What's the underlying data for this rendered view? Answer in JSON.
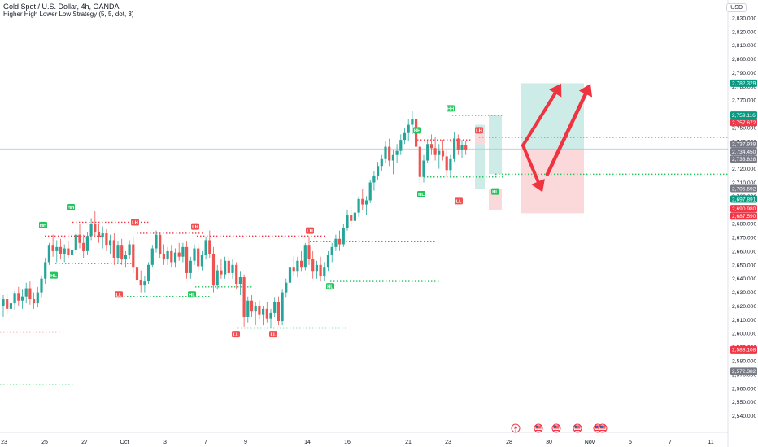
{
  "header": {
    "symbol_title": "Gold Spot / U.S. Dollar, 4h, OANDA",
    "indicator": "Higher High Lower Low Strategy (5, 5, dot, 3)",
    "currency": "USD"
  },
  "colors": {
    "up": "#26a69a",
    "down": "#ef5350",
    "hh_label": "#22c55e",
    "ll_label": "#f05252",
    "red_dots": "#f23645",
    "green_dots": "#22c55e",
    "arrow": "#ef3340",
    "long_zone": "#cdece7",
    "short_zone": "#fbd9db"
  },
  "chart_data": {
    "type": "candlestick",
    "y_range": [
      2535,
      2840
    ],
    "y_ticks": [
      2540,
      2550,
      2560,
      2570,
      2580,
      2590,
      2600,
      2610,
      2620,
      2630,
      2640,
      2650,
      2660,
      2670,
      2680,
      2690,
      2700,
      2710,
      2720,
      2730,
      2740,
      2750,
      2760,
      2770,
      2780,
      2790,
      2800,
      2810,
      2820,
      2830
    ],
    "y_tick_labels": [
      "2,540.000",
      "2,550.000",
      "2,560.000",
      "2,570.000",
      "2,580.000",
      "2,590.000",
      "2,600.000",
      "2,610.000",
      "2,620.000",
      "2,630.000",
      "2,640.000",
      "2,650.000",
      "2,660.000",
      "2,670.000",
      "2,680.000",
      "2,690.000",
      "2,700.000",
      "2,710.000",
      "2,720.000",
      "2,730.000",
      "2,740.000",
      "2,750.000",
      "2,760.000",
      "2,770.000",
      "2,780.000",
      "2,790.000",
      "2,800.000",
      "2,810.000",
      "2,820.000",
      "2,830.000"
    ],
    "x_ticks": [
      {
        "label": "23",
        "pos": 5
      },
      {
        "label": "25",
        "pos": 55
      },
      {
        "label": "27",
        "pos": 104
      },
      {
        "label": "Oct",
        "pos": 153
      },
      {
        "label": "3",
        "pos": 203
      },
      {
        "label": "7",
        "pos": 253
      },
      {
        "label": "9",
        "pos": 302
      },
      {
        "label": "14",
        "pos": 378
      },
      {
        "label": "16",
        "pos": 427
      },
      {
        "label": "21",
        "pos": 502
      },
      {
        "label": "23",
        "pos": 551
      },
      {
        "label": "28",
        "pos": 626
      },
      {
        "label": "30",
        "pos": 675
      },
      {
        "label": "Nov",
        "pos": 725
      },
      {
        "label": "5",
        "pos": 775
      },
      {
        "label": "7",
        "pos": 824
      },
      {
        "label": "11",
        "pos": 874
      }
    ],
    "price_badges": [
      {
        "value": 2782.329,
        "label": "2,782.329",
        "color": "#089981"
      },
      {
        "value": 2759.116,
        "label": "2,759.116",
        "color": "#089981"
      },
      {
        "value": 2757.672,
        "label": "2,757.672",
        "color": "#f23645"
      },
      {
        "value": 2737.938,
        "label": "2,737.938",
        "color": "#787b86"
      },
      {
        "value": 2734.45,
        "label": "2,734.450",
        "color": "#787b86"
      },
      {
        "value": 2733.828,
        "label": "2,733.828",
        "color": "#787b86"
      },
      {
        "value": 2705.592,
        "label": "2,705.592",
        "color": "#787b86"
      },
      {
        "value": 2697.891,
        "label": "2,697.891",
        "color": "#089981"
      },
      {
        "value": 2690.98,
        "label": "2,690.980",
        "color": "#f23645"
      },
      {
        "value": 2687.59,
        "label": "2,687.590",
        "color": "#f23645"
      },
      {
        "value": 2588.108,
        "label": "2,588.108",
        "color": "#f23645"
      },
      {
        "value": 2572.382,
        "label": "2,572.382",
        "color": "#787b86"
      }
    ],
    "swing_labels": [
      {
        "text": "HH",
        "pos": 53,
        "price": 2676,
        "kind": "high"
      },
      {
        "text": "HL",
        "pos": 66,
        "price": 2646,
        "kind": "low"
      },
      {
        "text": "HH",
        "pos": 87,
        "price": 2689,
        "kind": "high"
      },
      {
        "text": "LL",
        "pos": 146,
        "price": 2632,
        "kind": "low"
      },
      {
        "text": "LH",
        "pos": 166,
        "price": 2678,
        "kind": "high"
      },
      {
        "text": "LH",
        "pos": 240,
        "price": 2675,
        "kind": "high"
      },
      {
        "text": "HL",
        "pos": 236,
        "price": 2632,
        "kind": "low"
      },
      {
        "text": "LL",
        "pos": 290,
        "price": 2603,
        "kind": "low"
      },
      {
        "text": "LL",
        "pos": 336,
        "price": 2603,
        "kind": "low"
      },
      {
        "text": "LH",
        "pos": 381,
        "price": 2672,
        "kind": "high"
      },
      {
        "text": "HL",
        "pos": 406,
        "price": 2638,
        "kind": "low"
      },
      {
        "text": "HH",
        "pos": 513,
        "price": 2745,
        "kind": "high"
      },
      {
        "text": "HL",
        "pos": 518,
        "price": 2705,
        "kind": "low"
      },
      {
        "text": "HH",
        "pos": 554,
        "price": 2761,
        "kind": "high"
      },
      {
        "text": "LL",
        "pos": 564,
        "price": 2700,
        "kind": "low"
      },
      {
        "text": "LH",
        "pos": 589,
        "price": 2745,
        "kind": "high"
      },
      {
        "text": "HL",
        "pos": 609,
        "price": 2707,
        "kind": "low"
      }
    ],
    "level_lines": [
      {
        "from": 0,
        "to": 75,
        "price": 2601,
        "color": "red"
      },
      {
        "from": 0,
        "to": 90,
        "price": 2563,
        "color": "green"
      },
      {
        "from": 55,
        "to": 125,
        "price": 2671,
        "color": "red"
      },
      {
        "from": 68,
        "to": 165,
        "price": 2651,
        "color": "green"
      },
      {
        "from": 89,
        "to": 185,
        "price": 2681,
        "color": "red"
      },
      {
        "from": 148,
        "to": 258,
        "price": 2627,
        "color": "green"
      },
      {
        "from": 168,
        "to": 250,
        "price": 2673,
        "color": "red"
      },
      {
        "from": 240,
        "to": 310,
        "price": 2634,
        "color": "green"
      },
      {
        "from": 242,
        "to": 400,
        "price": 2671,
        "color": "red"
      },
      {
        "from": 292,
        "to": 425,
        "price": 2604,
        "color": "green"
      },
      {
        "from": 381,
        "to": 535,
        "price": 2667,
        "color": "red"
      },
      {
        "from": 406,
        "to": 540,
        "price": 2638,
        "color": "green"
      },
      {
        "from": 513,
        "to": 580,
        "price": 2741,
        "color": "red"
      },
      {
        "from": 521,
        "to": 620,
        "price": 2714,
        "color": "green"
      },
      {
        "from": 556,
        "to": 620,
        "price": 2759,
        "color": "red"
      },
      {
        "from": 589,
        "to": 895,
        "price": 2743,
        "color": "red"
      },
      {
        "from": 609,
        "to": 895,
        "price": 2716,
        "color": "green"
      }
    ],
    "candles": [
      [
        2620,
        2628,
        2612,
        2625
      ],
      [
        2625,
        2629,
        2614,
        2618
      ],
      [
        2618,
        2626,
        2615,
        2622
      ],
      [
        2622,
        2631,
        2617,
        2629
      ],
      [
        2629,
        2634,
        2620,
        2624
      ],
      [
        2624,
        2632,
        2618,
        2627
      ],
      [
        2627,
        2637,
        2622,
        2633
      ],
      [
        2633,
        2638,
        2621,
        2625
      ],
      [
        2625,
        2630,
        2618,
        2622
      ],
      [
        2622,
        2634,
        2619,
        2630
      ],
      [
        2630,
        2642,
        2626,
        2640
      ],
      [
        2640,
        2655,
        2636,
        2652
      ],
      [
        2652,
        2666,
        2650,
        2664
      ],
      [
        2664,
        2672,
        2656,
        2660
      ],
      [
        2660,
        2668,
        2652,
        2663
      ],
      [
        2663,
        2669,
        2654,
        2658
      ],
      [
        2658,
        2665,
        2652,
        2662
      ],
      [
        2662,
        2667,
        2655,
        2657
      ],
      [
        2657,
        2664,
        2651,
        2661
      ],
      [
        2661,
        2674,
        2658,
        2672
      ],
      [
        2672,
        2680,
        2662,
        2666
      ],
      [
        2666,
        2672,
        2655,
        2660
      ],
      [
        2660,
        2674,
        2657,
        2671
      ],
      [
        2671,
        2684,
        2668,
        2680
      ],
      [
        2680,
        2689,
        2670,
        2674
      ],
      [
        2674,
        2680,
        2666,
        2670
      ],
      [
        2670,
        2678,
        2662,
        2673
      ],
      [
        2673,
        2676,
        2660,
        2664
      ],
      [
        2664,
        2672,
        2658,
        2668
      ],
      [
        2668,
        2673,
        2650,
        2655
      ],
      [
        2655,
        2667,
        2651,
        2664
      ],
      [
        2664,
        2669,
        2650,
        2654
      ],
      [
        2654,
        2660,
        2648,
        2657
      ],
      [
        2657,
        2668,
        2654,
        2665
      ],
      [
        2665,
        2670,
        2644,
        2648
      ],
      [
        2648,
        2656,
        2635,
        2639
      ],
      [
        2639,
        2646,
        2630,
        2635
      ],
      [
        2635,
        2642,
        2630,
        2638
      ],
      [
        2638,
        2652,
        2636,
        2650
      ],
      [
        2650,
        2664,
        2648,
        2662
      ],
      [
        2662,
        2675,
        2659,
        2672
      ],
      [
        2672,
        2674,
        2655,
        2658
      ],
      [
        2658,
        2665,
        2650,
        2654
      ],
      [
        2654,
        2663,
        2650,
        2660
      ],
      [
        2660,
        2664,
        2648,
        2652
      ],
      [
        2652,
        2662,
        2648,
        2659
      ],
      [
        2659,
        2666,
        2653,
        2656
      ],
      [
        2656,
        2666,
        2652,
        2663
      ],
      [
        2663,
        2667,
        2640,
        2644
      ],
      [
        2644,
        2656,
        2640,
        2653
      ],
      [
        2653,
        2665,
        2650,
        2662
      ],
      [
        2662,
        2666,
        2645,
        2649
      ],
      [
        2649,
        2660,
        2646,
        2657
      ],
      [
        2657,
        2670,
        2654,
        2668
      ],
      [
        2668,
        2675,
        2655,
        2658
      ],
      [
        2658,
        2663,
        2630,
        2635
      ],
      [
        2635,
        2650,
        2632,
        2646
      ],
      [
        2646,
        2654,
        2640,
        2643
      ],
      [
        2643,
        2656,
        2640,
        2653
      ],
      [
        2653,
        2656,
        2640,
        2644
      ],
      [
        2644,
        2654,
        2640,
        2650
      ],
      [
        2650,
        2652,
        2632,
        2636
      ],
      [
        2636,
        2645,
        2628,
        2641
      ],
      [
        2641,
        2643,
        2605,
        2612
      ],
      [
        2612,
        2627,
        2608,
        2624
      ],
      [
        2624,
        2628,
        2612,
        2616
      ],
      [
        2616,
        2623,
        2606,
        2620
      ],
      [
        2620,
        2624,
        2610,
        2614
      ],
      [
        2614,
        2620,
        2606,
        2618
      ],
      [
        2618,
        2623,
        2608,
        2611
      ],
      [
        2611,
        2618,
        2604,
        2615
      ],
      [
        2615,
        2626,
        2612,
        2623
      ],
      [
        2623,
        2627,
        2606,
        2609
      ],
      [
        2609,
        2632,
        2606,
        2630
      ],
      [
        2630,
        2640,
        2626,
        2637
      ],
      [
        2637,
        2650,
        2634,
        2648
      ],
      [
        2648,
        2656,
        2642,
        2645
      ],
      [
        2645,
        2656,
        2641,
        2653
      ],
      [
        2653,
        2660,
        2645,
        2648
      ],
      [
        2648,
        2666,
        2646,
        2664
      ],
      [
        2664,
        2670,
        2650,
        2654
      ],
      [
        2654,
        2660,
        2640,
        2645
      ],
      [
        2645,
        2653,
        2640,
        2650
      ],
      [
        2650,
        2656,
        2638,
        2642
      ],
      [
        2642,
        2652,
        2638,
        2648
      ],
      [
        2648,
        2660,
        2645,
        2657
      ],
      [
        2657,
        2666,
        2652,
        2663
      ],
      [
        2663,
        2672,
        2660,
        2669
      ],
      [
        2669,
        2675,
        2660,
        2665
      ],
      [
        2665,
        2680,
        2663,
        2677
      ],
      [
        2677,
        2690,
        2675,
        2686
      ],
      [
        2686,
        2692,
        2678,
        2682
      ],
      [
        2682,
        2690,
        2678,
        2688
      ],
      [
        2688,
        2700,
        2685,
        2698
      ],
      [
        2698,
        2705,
        2690,
        2694
      ],
      [
        2694,
        2700,
        2686,
        2697
      ],
      [
        2697,
        2712,
        2695,
        2710
      ],
      [
        2710,
        2718,
        2704,
        2715
      ],
      [
        2715,
        2725,
        2712,
        2722
      ],
      [
        2722,
        2730,
        2718,
        2727
      ],
      [
        2727,
        2740,
        2724,
        2736
      ],
      [
        2736,
        2742,
        2722,
        2726
      ],
      [
        2726,
        2734,
        2716,
        2730
      ],
      [
        2730,
        2738,
        2724,
        2733
      ],
      [
        2733,
        2745,
        2730,
        2741
      ],
      [
        2741,
        2750,
        2738,
        2746
      ],
      [
        2746,
        2756,
        2740,
        2752
      ],
      [
        2752,
        2762,
        2745,
        2756
      ],
      [
        2756,
        2759,
        2732,
        2736
      ],
      [
        2736,
        2740,
        2708,
        2714
      ],
      [
        2714,
        2730,
        2710,
        2726
      ],
      [
        2726,
        2741,
        2724,
        2738
      ],
      [
        2738,
        2745,
        2730,
        2735
      ],
      [
        2735,
        2743,
        2726,
        2730
      ],
      [
        2730,
        2738,
        2720,
        2733
      ],
      [
        2733,
        2741,
        2726,
        2729
      ],
      [
        2729,
        2734,
        2714,
        2719
      ],
      [
        2719,
        2730,
        2715,
        2727
      ],
      [
        2727,
        2747,
        2725,
        2742
      ],
      [
        2742,
        2745,
        2730,
        2734
      ],
      [
        2734,
        2741,
        2728,
        2737
      ],
      [
        2737,
        2740,
        2730,
        2734
      ]
    ]
  },
  "footer_icons": [
    "lightning-icon",
    "us-flag-icon",
    "us-flag-icon",
    "us-flag-icon",
    "us-flag-icon"
  ]
}
